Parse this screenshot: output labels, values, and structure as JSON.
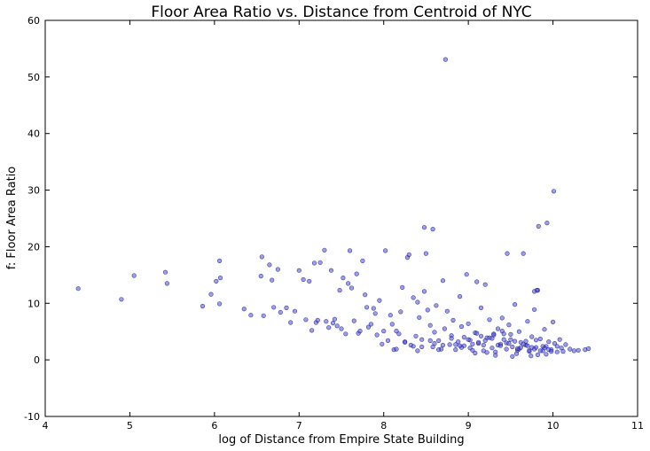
{
  "chart_data": {
    "type": "scatter",
    "title": "Floor Area Ratio vs. Distance from Centroid of NYC",
    "xlabel": "log of Distance from Empire State Building",
    "ylabel": "f: Floor Area Ratio",
    "xlim": [
      4,
      11
    ],
    "ylim": [
      -10,
      60
    ],
    "xticks": [
      4,
      5,
      6,
      7,
      8,
      9,
      10,
      11
    ],
    "yticks": [
      -10,
      0,
      10,
      20,
      30,
      40,
      50,
      60
    ],
    "grid": false,
    "legend": "none",
    "colors": {
      "marker_fill": "#4d4dd6",
      "marker_edge": "#000080",
      "axes": "#000000"
    },
    "series": [
      {
        "name": "",
        "x": [
          4.39,
          4.9,
          5.05,
          5.42,
          5.44,
          5.86,
          5.96,
          6.02,
          6.06,
          6.07,
          6.06,
          6.35,
          6.43,
          6.55,
          6.56,
          6.58,
          6.65,
          6.68,
          6.7,
          6.75,
          6.78,
          6.85,
          6.9,
          6.95,
          7.0,
          7.05,
          7.08,
          7.12,
          7.15,
          7.18,
          7.2,
          7.22,
          7.25,
          7.3,
          7.32,
          7.35,
          7.38,
          7.4,
          7.42,
          7.45,
          7.48,
          7.5,
          7.52,
          7.55,
          7.58,
          7.6,
          7.62,
          7.65,
          7.68,
          7.7,
          7.72,
          7.75,
          7.78,
          7.8,
          7.82,
          7.85,
          7.88,
          7.9,
          7.92,
          7.95,
          7.98,
          8.0,
          8.02,
          8.05,
          8.08,
          8.1,
          8.12,
          8.15,
          8.18,
          8.2,
          8.22,
          8.25,
          8.28,
          8.3,
          8.32,
          8.35,
          8.38,
          8.4,
          8.42,
          8.45,
          8.48,
          8.5,
          8.52,
          8.55,
          8.58,
          8.6,
          8.62,
          8.65,
          8.68,
          8.7,
          8.72,
          8.75,
          8.78,
          8.8,
          8.82,
          8.85,
          8.88,
          8.9,
          8.92,
          8.95,
          8.98,
          9.0,
          9.02,
          9.05,
          9.08,
          9.1,
          9.12,
          9.15,
          9.18,
          9.2,
          9.22,
          9.25,
          9.28,
          9.3,
          9.32,
          9.35,
          9.38,
          9.4,
          9.42,
          9.45,
          9.48,
          9.5,
          9.52,
          9.55,
          9.58,
          9.6,
          9.62,
          9.65,
          9.68,
          9.7,
          9.72,
          9.75,
          9.78,
          9.8,
          9.82,
          9.85,
          9.88,
          9.9,
          9.92,
          9.95,
          9.98,
          10.0,
          10.02,
          10.05,
          10.08,
          10.1,
          10.12,
          10.15,
          10.2,
          10.25,
          10.3,
          10.38,
          10.42,
          8.73,
          10.01,
          9.93,
          9.83,
          8.48,
          8.58,
          9.46,
          9.81,
          9.78,
          8.25,
          8.35,
          8.4,
          8.92,
          9.05,
          9.2,
          9.35,
          9.6,
          9.9,
          8.8,
          9.15,
          9.45,
          9.7,
          9.95,
          8.6,
          9.0,
          9.3,
          9.55,
          9.75,
          9.85,
          9.4,
          9.1,
          9.25,
          9.5,
          9.65,
          8.95,
          8.7,
          9.8,
          10.05,
          8.15,
          8.45,
          8.85,
          9.12,
          9.38,
          9.58,
          9.72,
          9.88,
          8.55,
          9.02,
          9.28,
          9.48,
          9.62,
          9.78,
          9.98,
          9.18,
          9.42,
          9.68,
          9.22,
          9.52,
          9.82,
          8.65,
          8.9,
          9.08,
          9.32,
          9.57,
          9.74,
          9.92
        ],
        "y": [
          12.6,
          10.7,
          14.9,
          15.5,
          13.5,
          9.5,
          11.6,
          13.9,
          9.9,
          14.5,
          17.5,
          9.0,
          7.9,
          14.8,
          18.2,
          7.8,
          16.8,
          14.1,
          9.3,
          16.0,
          8.4,
          9.2,
          6.6,
          8.6,
          15.8,
          14.2,
          7.1,
          13.9,
          5.2,
          17.1,
          6.6,
          7.0,
          17.2,
          19.4,
          6.8,
          5.7,
          15.8,
          6.5,
          7.2,
          6.0,
          12.3,
          5.5,
          14.5,
          4.6,
          13.5,
          19.3,
          12.7,
          6.9,
          15.2,
          4.7,
          5.1,
          17.5,
          11.5,
          9.3,
          5.8,
          6.3,
          9.1,
          8.2,
          4.4,
          10.5,
          2.8,
          5.1,
          19.3,
          3.4,
          7.9,
          6.3,
          1.8,
          5.1,
          4.6,
          8.5,
          12.8,
          3.2,
          18.1,
          18.6,
          2.6,
          11.0,
          4.2,
          10.2,
          7.5,
          3.6,
          12.1,
          18.8,
          8.8,
          6.1,
          2.3,
          4.9,
          9.6,
          3.4,
          1.9,
          14.0,
          5.5,
          8.6,
          2.7,
          4.3,
          7.0,
          1.8,
          3.2,
          11.2,
          5.9,
          2.5,
          15.1,
          6.4,
          3.5,
          1.7,
          4.8,
          13.8,
          2.9,
          9.2,
          1.6,
          13.3,
          3.9,
          7.1,
          2.1,
          4.6,
          1.4,
          5.5,
          2.8,
          7.4,
          3.6,
          1.9,
          6.2,
          4.5,
          2.3,
          9.8,
          1.7,
          5.0,
          3.1,
          18.8,
          2.6,
          6.8,
          1.5,
          4.1,
          8.9,
          2.2,
          12.3,
          3.7,
          1.6,
          5.4,
          2.4,
          3.2,
          1.8,
          6.7,
          2.9,
          1.4,
          3.6,
          2.1,
          1.5,
          2.7,
          1.9,
          1.6,
          1.7,
          1.8,
          2.0,
          53.1,
          29.8,
          24.2,
          23.6,
          23.4,
          23.1,
          18.8,
          12.3,
          12.1,
          3.1,
          2.4,
          1.6,
          2.2,
          2.8,
          3.4,
          2.6,
          1.9,
          2.1,
          3.8,
          4.2,
          3.0,
          2.5,
          1.8,
          2.9,
          3.6,
          4.4,
          3.3,
          2.2,
          1.6,
          5.1,
          4.7,
          3.9,
          3.6,
          2.8,
          4.0,
          2.6,
          3.5,
          2.4,
          1.9,
          2.3,
          2.7,
          3.1,
          2.5,
          2.0,
          1.7,
          2.4,
          3.4,
          2.1,
          3.8,
          2.9,
          2.2,
          1.9,
          1.5,
          2.6,
          4.6,
          3.3,
          1.3,
          0.6,
          0.9,
          1.8,
          2.5,
          1.2,
          0.8,
          1.1,
          0.7,
          1.0
        ]
      }
    ]
  }
}
